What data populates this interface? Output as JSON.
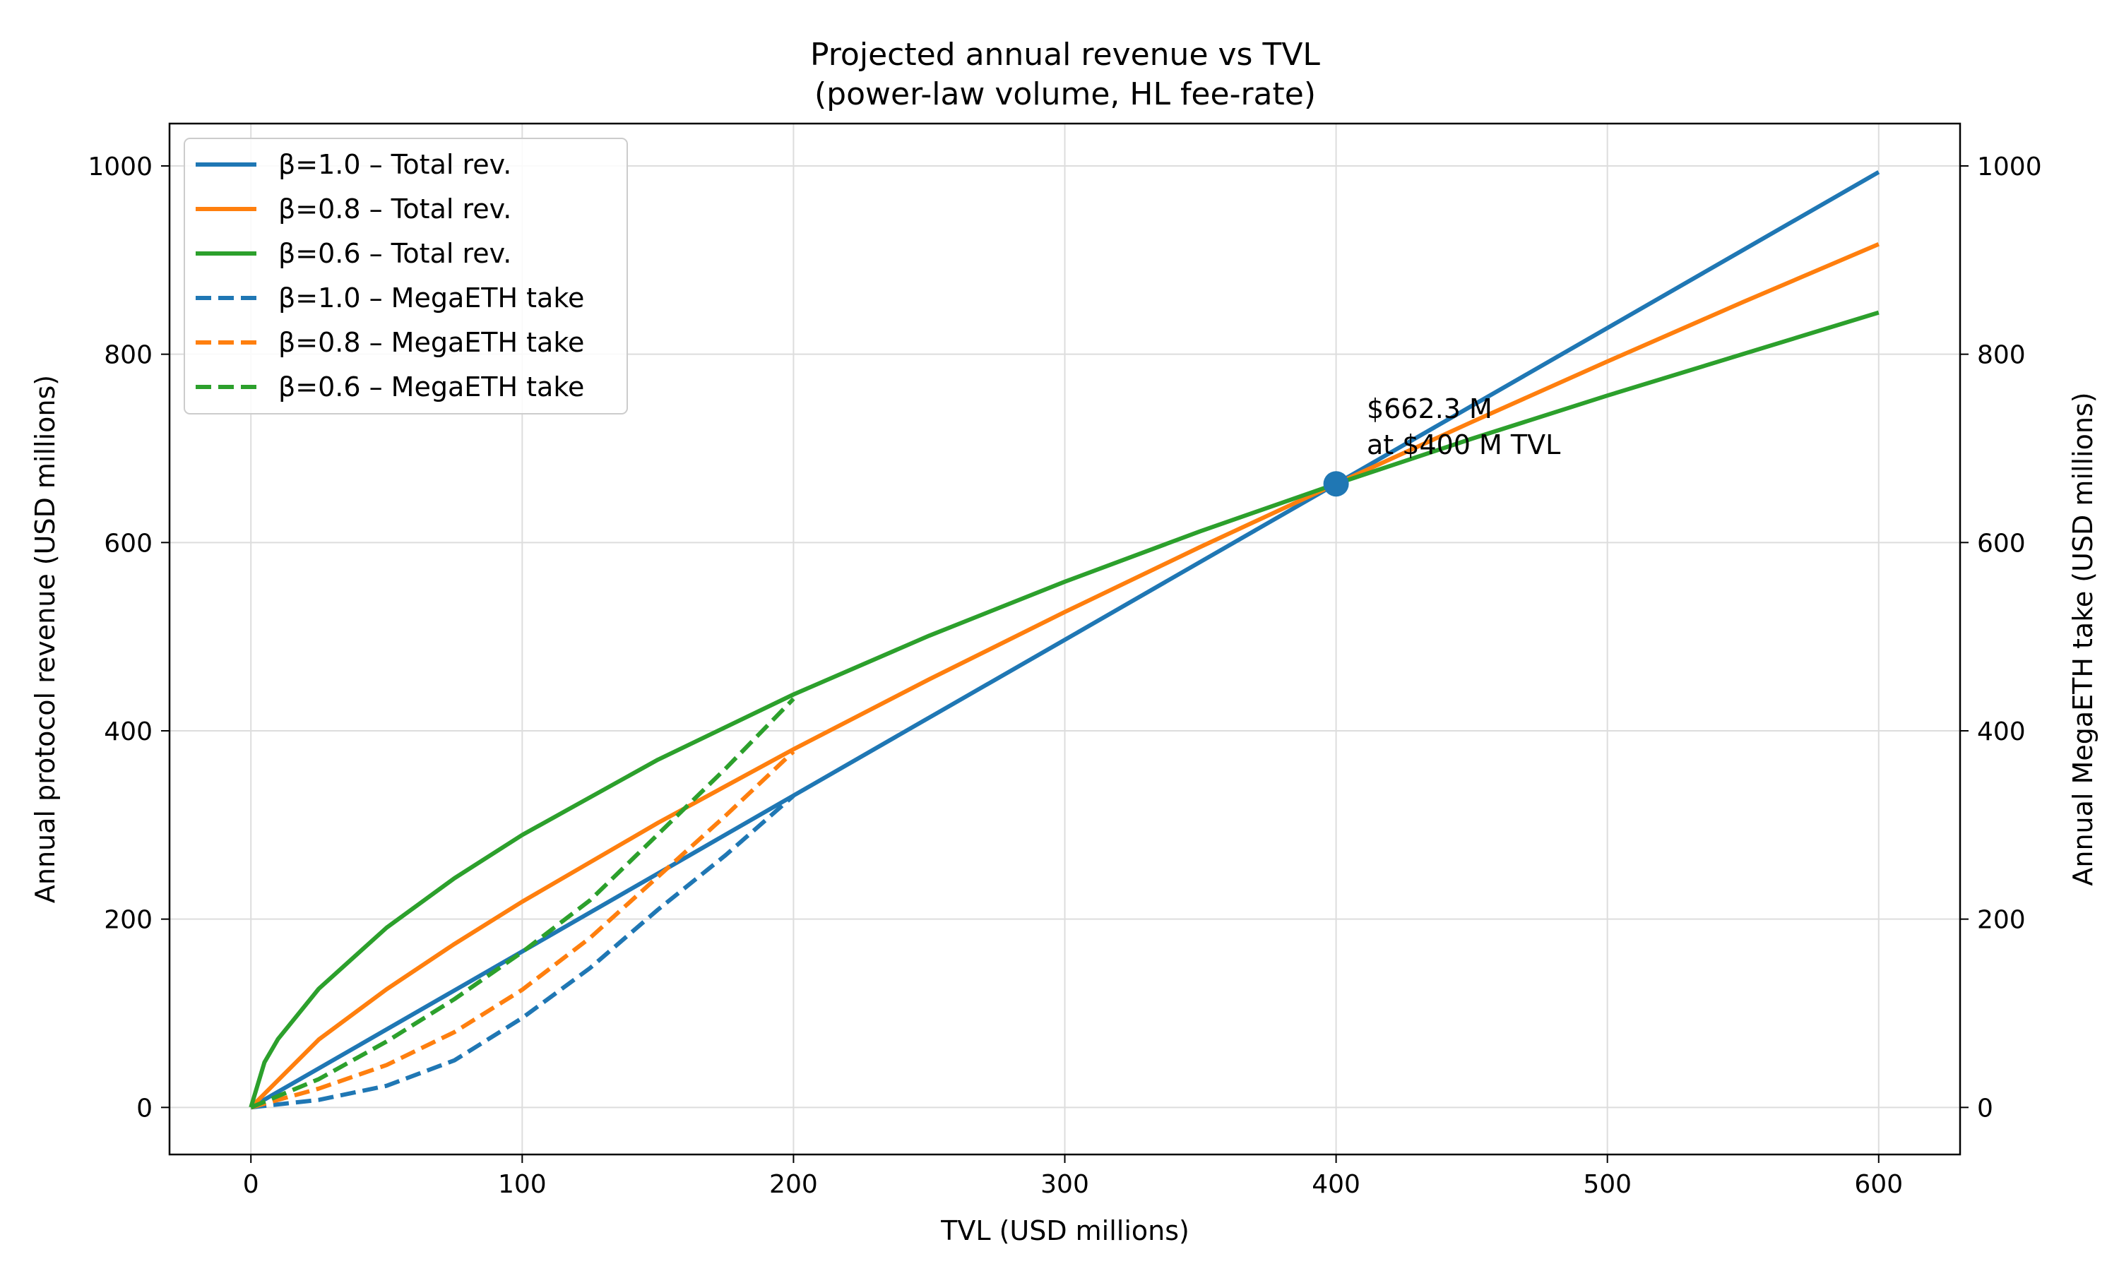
{
  "chart_data": {
    "type": "line",
    "title": "Projected annual revenue vs TVL",
    "subtitle": "(power-law volume, HL fee-rate)",
    "xlabel": "TVL (USD millions)",
    "ylabel": "Annual protocol revenue (USD millions)",
    "ylabel_right": "Annual MegaETH take (USD millions)",
    "xlim": [
      -30,
      630
    ],
    "ylim": [
      -50,
      1045
    ],
    "x_ticks": [
      0,
      100,
      200,
      300,
      400,
      500,
      600
    ],
    "y_ticks": [
      0,
      200,
      400,
      600,
      800,
      1000
    ],
    "grid": true,
    "legend_position": "top-left",
    "colors": {
      "blue": "#1f77b4",
      "orange": "#ff7f0e",
      "green": "#2ca02c"
    },
    "series": [
      {
        "name": "β=1.0 – Total rev.",
        "color": "#1f77b4",
        "dash": "solid",
        "x": [
          0,
          50,
          100,
          150,
          200,
          250,
          300,
          350,
          400,
          450,
          500,
          550,
          600
        ],
        "y": [
          0,
          82.8,
          165.6,
          248.4,
          331.2,
          414.0,
          496.7,
          579.5,
          662.3,
          745.1,
          827.9,
          910.7,
          993.5
        ]
      },
      {
        "name": "β=0.8 – Total rev.",
        "color": "#ff7f0e",
        "dash": "solid",
        "x": [
          0,
          25,
          50,
          75,
          100,
          150,
          200,
          250,
          300,
          350,
          400,
          450,
          500,
          550,
          600
        ],
        "y": [
          0,
          72.1,
          125.5,
          173.6,
          218.5,
          302.2,
          380.4,
          454.7,
          526.2,
          595.4,
          662.3,
          728.0,
          792.3,
          855.4,
          917.0
        ]
      },
      {
        "name": "β=0.6 – Total rev.",
        "color": "#2ca02c",
        "dash": "solid",
        "x": [
          0,
          5,
          10,
          25,
          50,
          75,
          100,
          150,
          200,
          250,
          300,
          350,
          400,
          450,
          500,
          550,
          600
        ],
        "y": [
          0,
          47.9,
          72.6,
          126.0,
          190.9,
          243.4,
          289.4,
          369.3,
          438.6,
          501.0,
          558.4,
          612.0,
          662.3,
          710.2,
          756.1,
          800.2,
          844.3
        ]
      },
      {
        "name": "β=1.0 – MegaETH take",
        "color": "#1f77b4",
        "dash": "dashed",
        "x": [
          0,
          25,
          50,
          75,
          100,
          125,
          150,
          175,
          200
        ],
        "y": [
          0,
          8,
          23,
          50,
          95,
          148,
          210,
          268,
          331
        ]
      },
      {
        "name": "β=0.8 – MegaETH take",
        "color": "#ff7f0e",
        "dash": "dashed",
        "x": [
          0,
          25,
          50,
          75,
          100,
          125,
          150,
          175,
          200
        ],
        "y": [
          0,
          20,
          45,
          80,
          125,
          180,
          245,
          310,
          378
        ]
      },
      {
        "name": "β=0.6 – MegaETH take",
        "color": "#2ca02c",
        "dash": "dashed",
        "x": [
          0,
          25,
          50,
          75,
          100,
          125,
          150,
          175,
          200
        ],
        "y": [
          0,
          30,
          70,
          115,
          165,
          220,
          290,
          360,
          434
        ]
      }
    ],
    "marker": {
      "x": 400,
      "y": 662.3,
      "color": "#1f77b4"
    },
    "annotation": {
      "line1": "$662.3 M",
      "line2": "at $400 M TVL",
      "x": 411,
      "y": 662.3
    }
  }
}
